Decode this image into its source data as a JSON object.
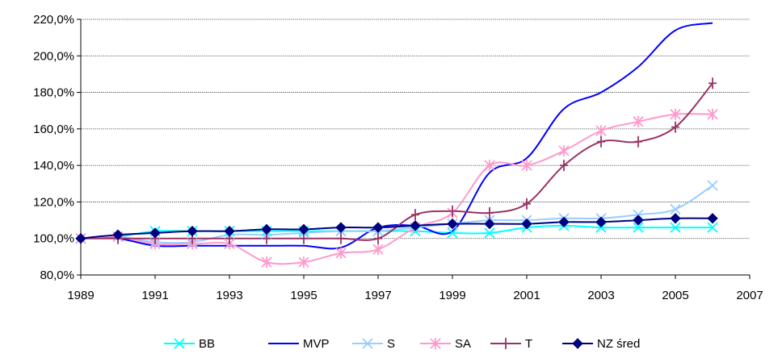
{
  "chart_data": {
    "type": "line",
    "title": "",
    "xlabel": "",
    "ylabel": "",
    "xlim": [
      1989,
      2007
    ],
    "ylim": [
      80,
      220
    ],
    "x_ticks": [
      "1989",
      "1991",
      "1993",
      "1995",
      "1997",
      "1999",
      "2001",
      "2003",
      "2005",
      "2007"
    ],
    "y_ticks": [
      "80,0%",
      "100,0%",
      "120,0%",
      "140,0%",
      "160,0%",
      "180,0%",
      "200,0%",
      "220,0%"
    ],
    "grid": "horizontal",
    "legend_position": "bottom",
    "x": [
      1989,
      1990,
      1991,
      1992,
      1993,
      1994,
      1995,
      1996,
      1997,
      1998,
      1999,
      2000,
      2001,
      2002,
      2003,
      2004,
      2005,
      2006
    ],
    "series": [
      {
        "name": "BB",
        "color": "#00FFFF",
        "marker": "x",
        "values": [
          100,
          101,
          104,
          104,
          104,
          104,
          104,
          104,
          104,
          104,
          103,
          103,
          106,
          107,
          106,
          106,
          106,
          106
        ]
      },
      {
        "name": "MVP",
        "color": "#0000FF",
        "marker": "none",
        "values": [
          100,
          100,
          96,
          96,
          96,
          96,
          96,
          95,
          106,
          107,
          104,
          136,
          144,
          171,
          180,
          194,
          214,
          218
        ]
      },
      {
        "name": "S",
        "color": "#99CCFF",
        "marker": "x",
        "values": [
          100,
          101,
          98,
          98,
          102,
          102,
          103,
          104,
          104,
          106,
          108,
          110,
          110,
          111,
          111,
          113,
          116,
          129
        ]
      },
      {
        "name": "SA",
        "color": "#FF99CC",
        "marker": "star",
        "values": [
          100,
          101,
          97,
          97,
          97,
          87,
          87,
          92,
          94,
          106,
          114,
          140,
          140,
          148,
          159,
          164,
          168,
          168
        ]
      },
      {
        "name": "T",
        "color": "#993366",
        "marker": "plus",
        "values": [
          100,
          100,
          100,
          100,
          100,
          100,
          100,
          100,
          100,
          113,
          115,
          114,
          119,
          140,
          153,
          153,
          161,
          185
        ]
      },
      {
        "name": "NZ śred",
        "color": "#000080",
        "marker": "diamond",
        "values": [
          100,
          102,
          103,
          104,
          104,
          105,
          105,
          106,
          106,
          107,
          108,
          108,
          108,
          109,
          109,
          110,
          111,
          111
        ]
      }
    ]
  }
}
